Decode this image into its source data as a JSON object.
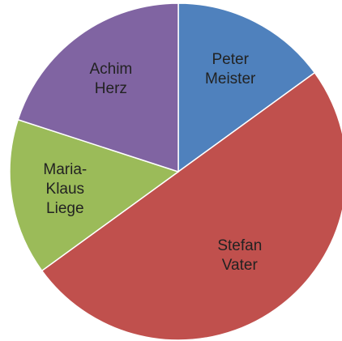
{
  "chart_data": {
    "type": "pie",
    "categories": [
      "Peter Meister",
      "Stefan Vater",
      "Maria-Klaus Liege",
      "Achim Herz"
    ],
    "values": [
      15,
      50,
      15,
      20
    ],
    "colors": [
      "#4f81bd",
      "#c0504d",
      "#9bbb59",
      "#8064a2"
    ]
  }
}
